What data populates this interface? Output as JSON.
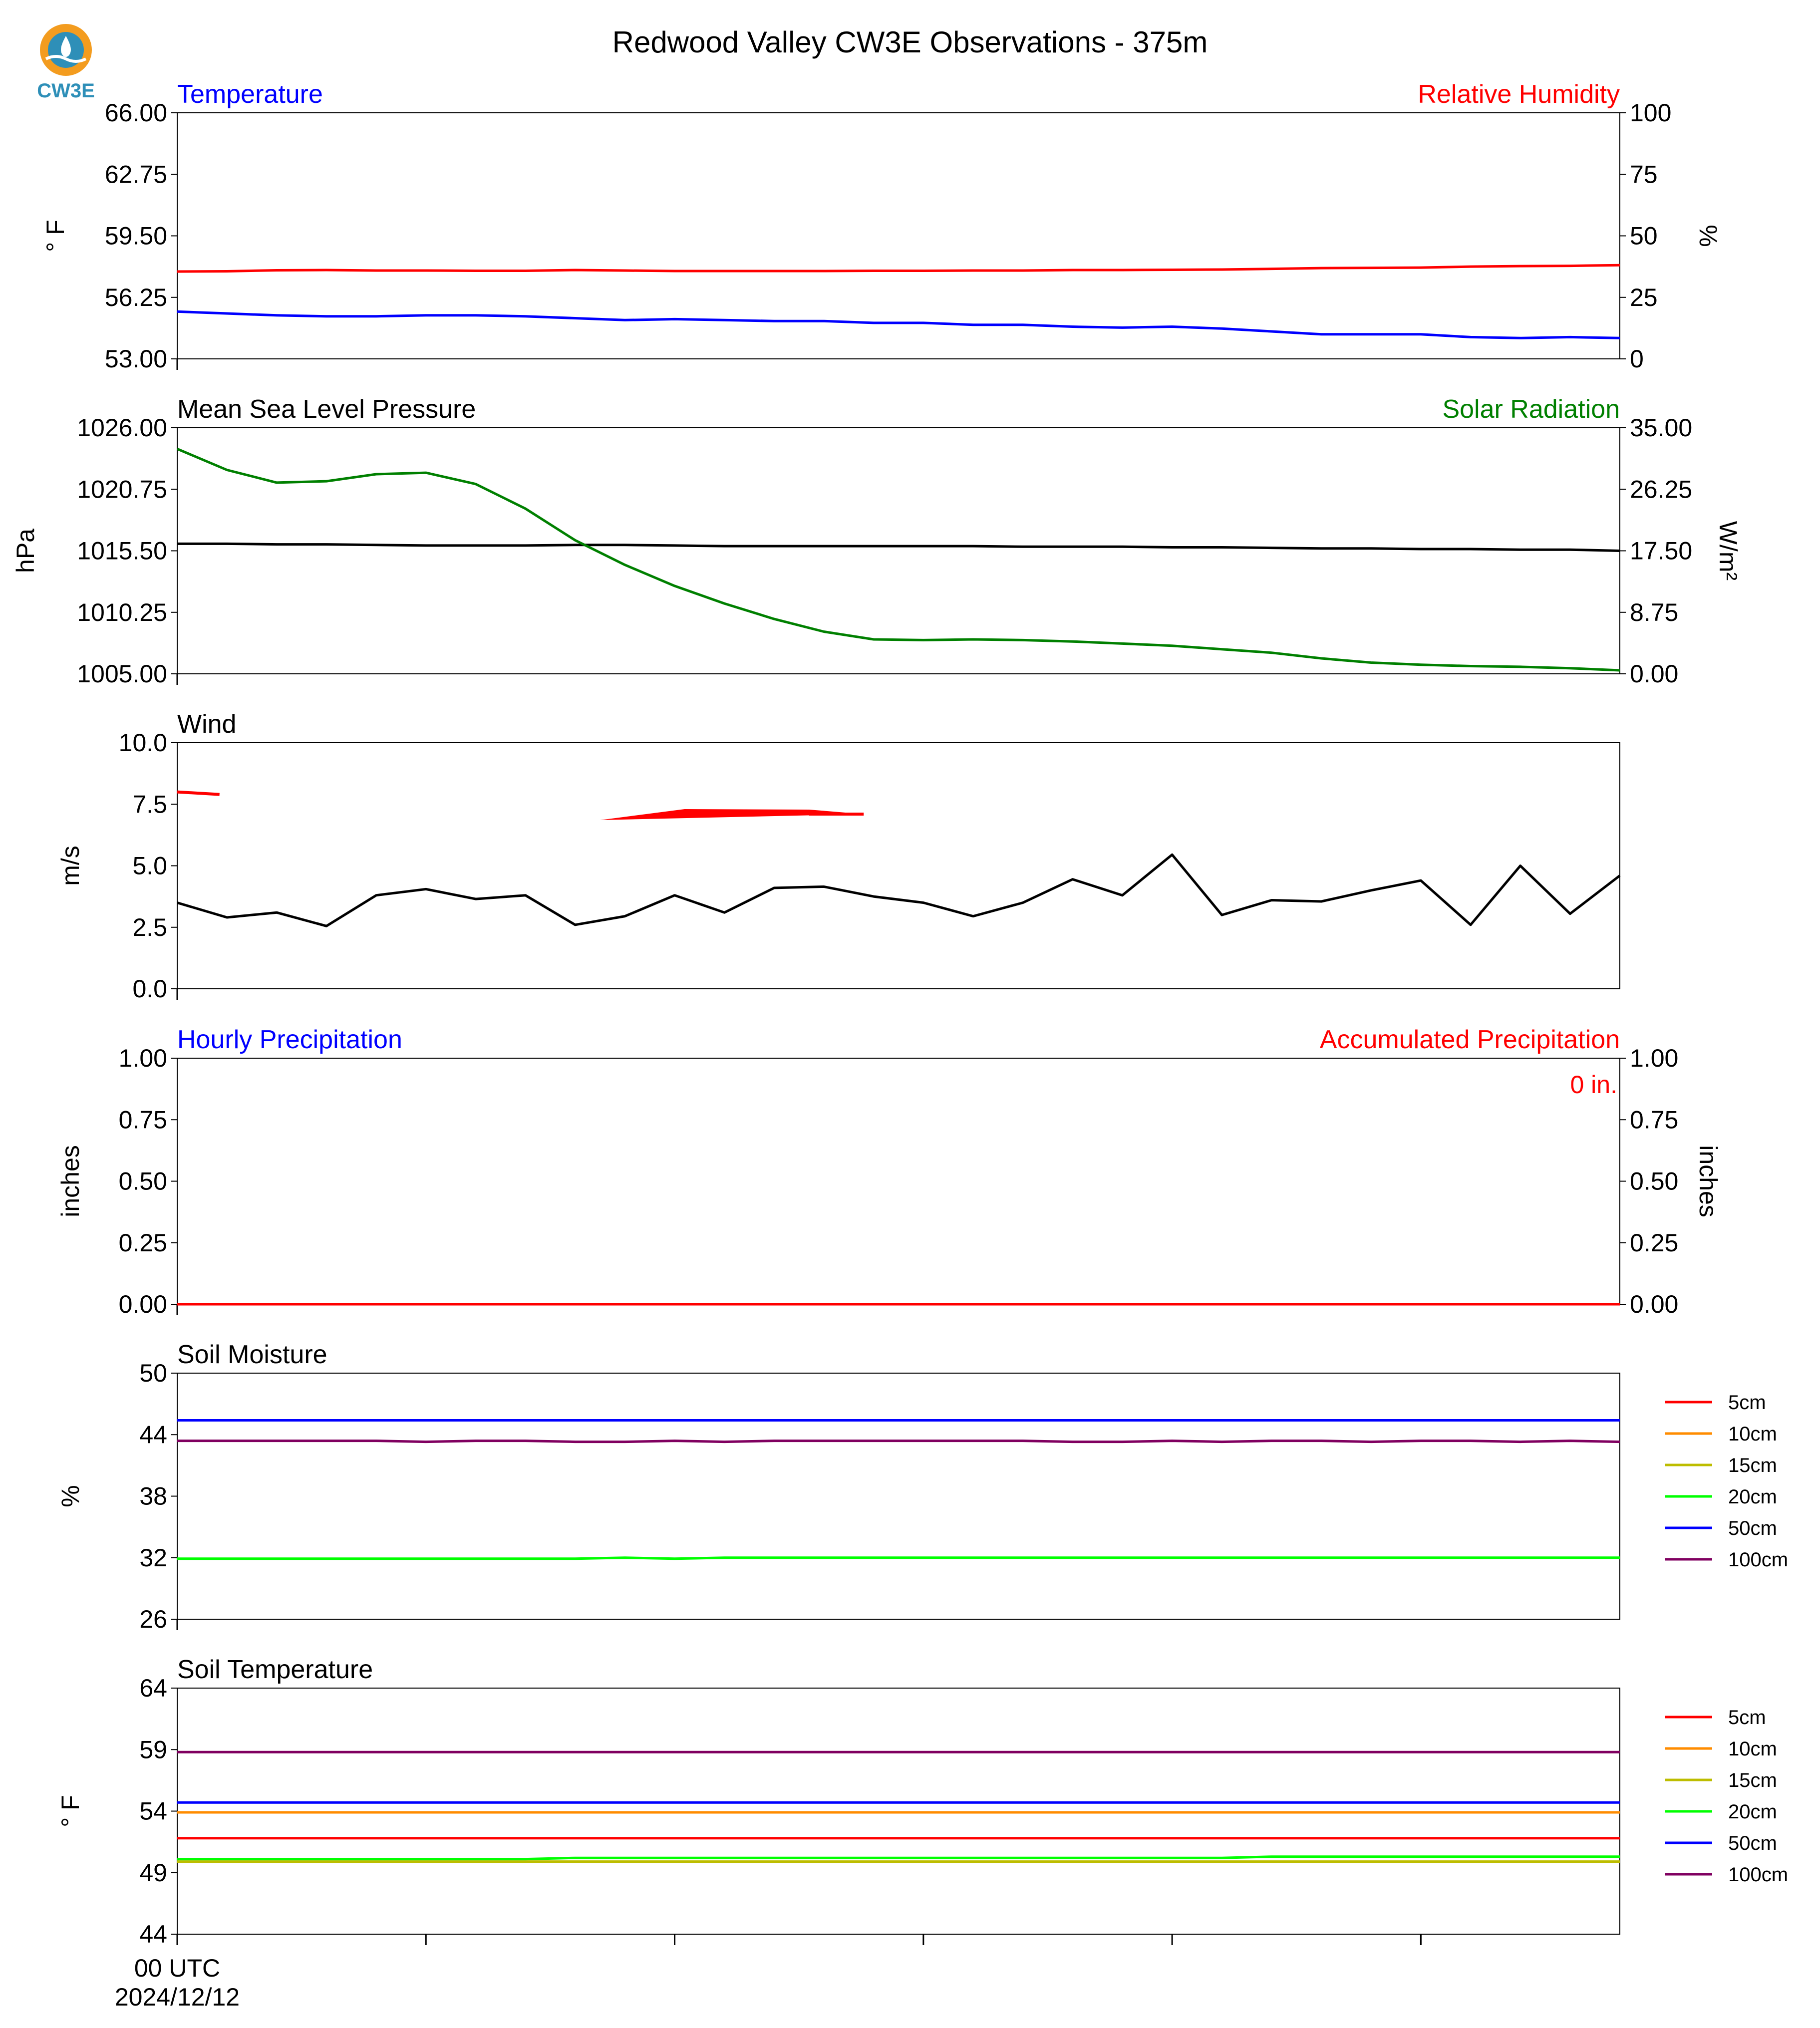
{
  "page": {
    "title": "Redwood Valley CW3E Observations - 375m",
    "logo_text": "CW3E",
    "x_start_label": "00 UTC",
    "x_date_label": "2024/12/12"
  },
  "colors": {
    "red": "#ff0000",
    "blue": "#0000ff",
    "green": "#008000",
    "black": "#000000",
    "lime": "#00ff00",
    "orange": "#ff8c00",
    "olive": "#bdbd00",
    "purple": "#800060",
    "logo_orange": "#f39c1f",
    "logo_blue": "#2e8fb8"
  },
  "chart_data": [
    {
      "type": "line",
      "left_title": "Temperature",
      "right_title": "Relative Humidity",
      "ylabel": "° F",
      "y2label": "%",
      "ylim": [
        53.0,
        66.0
      ],
      "yticks": [
        "53.00",
        "56.25",
        "59.50",
        "62.75",
        "66.00"
      ],
      "y2lim": [
        0,
        100
      ],
      "y2ticks": [
        "0",
        "25",
        "50",
        "75",
        "100"
      ],
      "x": [
        0,
        1,
        2,
        3,
        4,
        5,
        6,
        7,
        8,
        9,
        10,
        11,
        12,
        13,
        14,
        15,
        16,
        17,
        18,
        19,
        20,
        21,
        22,
        23,
        24,
        25,
        26,
        27,
        28,
        29
      ],
      "series": [
        {
          "name": "Temperature",
          "axis": "left",
          "color": "#0000ff",
          "values": [
            55.5,
            55.4,
            55.3,
            55.25,
            55.25,
            55.3,
            55.3,
            55.25,
            55.15,
            55.05,
            55.1,
            55.05,
            55.0,
            55.0,
            54.9,
            54.9,
            54.8,
            54.8,
            54.7,
            54.65,
            54.7,
            54.6,
            54.45,
            54.3,
            54.3,
            54.3,
            54.15,
            54.1,
            54.15,
            54.1
          ]
        },
        {
          "name": "Relative Humidity",
          "axis": "right",
          "color": "#ff0000",
          "values": [
            35.5,
            35.6,
            36.0,
            36.1,
            35.9,
            35.9,
            35.8,
            35.8,
            36.1,
            35.9,
            35.7,
            35.7,
            35.7,
            35.7,
            35.8,
            35.8,
            35.9,
            35.9,
            36.1,
            36.1,
            36.2,
            36.3,
            36.6,
            36.9,
            37.0,
            37.1,
            37.5,
            37.7,
            37.8,
            38.1
          ]
        }
      ]
    },
    {
      "type": "line",
      "left_title": "Mean Sea Level Pressure",
      "right_title": "Solar Radiation",
      "ylabel": "hPa",
      "y2label": "W/m²",
      "ylim": [
        1005.0,
        1026.0
      ],
      "yticks": [
        "1005.00",
        "1010.25",
        "1015.50",
        "1020.75",
        "1026.00"
      ],
      "y2lim": [
        0.0,
        35.0
      ],
      "y2ticks": [
        "0.00",
        "8.75",
        "17.50",
        "26.25",
        "35.00"
      ],
      "x": [
        0,
        1,
        2,
        3,
        4,
        5,
        6,
        7,
        8,
        9,
        10,
        11,
        12,
        13,
        14,
        15,
        16,
        17,
        18,
        19,
        20,
        21,
        22,
        23,
        24,
        25,
        26,
        27,
        28,
        29
      ],
      "series": [
        {
          "name": "Mean Sea Level Pressure",
          "axis": "left",
          "color": "#000000",
          "values": [
            1016.1,
            1016.1,
            1016.05,
            1016.05,
            1016.0,
            1015.95,
            1015.95,
            1015.95,
            1016.0,
            1016.0,
            1015.95,
            1015.9,
            1015.9,
            1015.9,
            1015.9,
            1015.9,
            1015.9,
            1015.85,
            1015.85,
            1015.85,
            1015.8,
            1015.8,
            1015.75,
            1015.7,
            1015.7,
            1015.65,
            1015.65,
            1015.6,
            1015.6,
            1015.5
          ]
        },
        {
          "name": "Solar Radiation",
          "axis": "right",
          "color": "#008000",
          "values": [
            32.0,
            29.0,
            27.2,
            27.4,
            28.4,
            28.6,
            27.0,
            23.5,
            19.0,
            15.5,
            12.5,
            10.0,
            7.8,
            6.0,
            4.9,
            4.8,
            4.9,
            4.8,
            4.6,
            4.3,
            4.0,
            3.5,
            3.0,
            2.2,
            1.6,
            1.3,
            1.1,
            1.0,
            0.8,
            0.5
          ]
        }
      ]
    },
    {
      "type": "line",
      "left_title": "Wind",
      "ylabel": "m/s",
      "ylim": [
        0.0,
        10.0
      ],
      "yticks": [
        "0.0",
        "2.5",
        "5.0",
        "7.5",
        "10.0"
      ],
      "x": [
        0,
        1,
        2,
        3,
        4,
        5,
        6,
        7,
        8,
        9,
        10,
        11,
        12,
        13,
        14,
        15,
        16,
        17,
        18,
        19,
        20,
        21,
        22,
        23,
        24,
        25,
        26,
        27,
        28,
        29
      ],
      "series": [
        {
          "name": "Wind Speed",
          "axis": "left",
          "color": "#000000",
          "values": [
            3.5,
            2.9,
            3.1,
            2.55,
            3.8,
            4.05,
            3.65,
            3.8,
            2.6,
            2.95,
            3.8,
            3.1,
            4.1,
            4.15,
            3.75,
            3.5,
            2.95,
            3.5,
            4.45,
            3.8,
            5.45,
            3.0,
            3.6,
            3.55,
            4.0,
            4.4,
            2.6,
            5.0,
            3.05,
            4.6
          ]
        }
      ],
      "barbs": {
        "color": "#ff0000",
        "y": [
          8.0,
          7.1
        ]
      }
    },
    {
      "type": "line",
      "left_title": "Hourly Precipitation",
      "right_title": "Accumulated Precipitation",
      "ylabel": "inches",
      "y2label": "inches",
      "ylim": [
        0.0,
        1.0
      ],
      "yticks": [
        "0.00",
        "0.25",
        "0.50",
        "0.75",
        "1.00"
      ],
      "y2lim": [
        0.0,
        1.0
      ],
      "y2ticks": [
        "0.00",
        "0.25",
        "0.50",
        "0.75",
        "1.00"
      ],
      "annotation": "0 in.",
      "x": [
        0,
        29
      ],
      "series": [
        {
          "name": "Hourly Precipitation",
          "axis": "left",
          "color": "#0000ff",
          "values": [
            0,
            0
          ]
        },
        {
          "name": "Accumulated Precipitation",
          "axis": "right",
          "color": "#ff0000",
          "values": [
            0,
            0
          ]
        }
      ]
    },
    {
      "type": "line",
      "left_title": "Soil Moisture",
      "ylabel": "%",
      "ylim": [
        26,
        50
      ],
      "yticks": [
        "26",
        "32",
        "38",
        "44",
        "50"
      ],
      "legend": [
        "5cm",
        "10cm",
        "15cm",
        "20cm",
        "50cm",
        "100cm"
      ],
      "legend_colors": [
        "#ff0000",
        "#ff8c00",
        "#bdbd00",
        "#00ff00",
        "#0000ff",
        "#800060"
      ],
      "x": [
        0,
        1,
        2,
        3,
        4,
        5,
        6,
        7,
        8,
        9,
        10,
        11,
        12,
        13,
        14,
        15,
        16,
        17,
        18,
        19,
        20,
        21,
        22,
        23,
        24,
        25,
        26,
        27,
        28,
        29
      ],
      "series": [
        {
          "name": "20cm",
          "axis": "left",
          "color": "#00ff00",
          "values": [
            31.9,
            31.9,
            31.9,
            31.9,
            31.9,
            31.9,
            31.9,
            31.9,
            31.9,
            32.0,
            31.9,
            32.0,
            32.0,
            32.0,
            32.0,
            32.0,
            32.0,
            32.0,
            32.0,
            32.0,
            32.0,
            32.0,
            32.0,
            32.0,
            32.0,
            32.0,
            32.0,
            32.0,
            32.0,
            32.0
          ]
        },
        {
          "name": "50cm",
          "axis": "left",
          "color": "#0000ff",
          "values": [
            45.4,
            45.4,
            45.4,
            45.4,
            45.4,
            45.4,
            45.4,
            45.4,
            45.4,
            45.4,
            45.4,
            45.4,
            45.4,
            45.4,
            45.4,
            45.4,
            45.4,
            45.4,
            45.4,
            45.4,
            45.4,
            45.4,
            45.4,
            45.4,
            45.4,
            45.4,
            45.4,
            45.4,
            45.4,
            45.4
          ]
        },
        {
          "name": "100cm",
          "axis": "left",
          "color": "#800060",
          "values": [
            43.4,
            43.4,
            43.4,
            43.4,
            43.4,
            43.3,
            43.4,
            43.4,
            43.3,
            43.3,
            43.4,
            43.3,
            43.4,
            43.4,
            43.4,
            43.4,
            43.4,
            43.4,
            43.3,
            43.3,
            43.4,
            43.3,
            43.4,
            43.4,
            43.3,
            43.4,
            43.4,
            43.3,
            43.4,
            43.3
          ]
        }
      ]
    },
    {
      "type": "line",
      "left_title": "Soil Temperature",
      "ylabel": "° F",
      "ylim": [
        44,
        64
      ],
      "yticks": [
        "44",
        "49",
        "54",
        "59",
        "64"
      ],
      "legend": [
        "5cm",
        "10cm",
        "15cm",
        "20cm",
        "50cm",
        "100cm"
      ],
      "legend_colors": [
        "#ff0000",
        "#ff8c00",
        "#bdbd00",
        "#00ff00",
        "#0000ff",
        "#800060"
      ],
      "x": [
        0,
        1,
        2,
        3,
        4,
        5,
        6,
        7,
        8,
        9,
        10,
        11,
        12,
        13,
        14,
        15,
        16,
        17,
        18,
        19,
        20,
        21,
        22,
        23,
        24,
        25,
        26,
        27,
        28,
        29
      ],
      "series": [
        {
          "name": "5cm",
          "axis": "left",
          "color": "#ff0000",
          "values": [
            51.8,
            51.8,
            51.8,
            51.8,
            51.8,
            51.8,
            51.8,
            51.8,
            51.8,
            51.8,
            51.8,
            51.8,
            51.8,
            51.8,
            51.8,
            51.8,
            51.8,
            51.8,
            51.8,
            51.8,
            51.8,
            51.8,
            51.8,
            51.8,
            51.8,
            51.8,
            51.8,
            51.8,
            51.8,
            51.8
          ]
        },
        {
          "name": "10cm",
          "axis": "left",
          "color": "#ff8c00",
          "values": [
            53.9,
            53.9,
            53.9,
            53.9,
            53.9,
            53.9,
            53.9,
            53.9,
            53.9,
            53.9,
            53.9,
            53.9,
            53.9,
            53.9,
            53.9,
            53.9,
            53.9,
            53.9,
            53.9,
            53.9,
            53.9,
            53.9,
            53.9,
            53.9,
            53.9,
            53.9,
            53.9,
            53.9,
            53.9,
            53.9
          ]
        },
        {
          "name": "15cm",
          "axis": "left",
          "color": "#bdbd00",
          "values": [
            49.9,
            49.9,
            49.9,
            49.9,
            49.9,
            49.9,
            49.9,
            49.9,
            49.9,
            49.9,
            49.9,
            49.9,
            49.9,
            49.9,
            49.9,
            49.9,
            49.9,
            49.9,
            49.9,
            49.9,
            49.9,
            49.9,
            49.9,
            49.9,
            49.9,
            49.9,
            49.9,
            49.9,
            49.9,
            49.9
          ]
        },
        {
          "name": "20cm",
          "axis": "left",
          "color": "#00ff00",
          "values": [
            50.1,
            50.1,
            50.1,
            50.1,
            50.1,
            50.1,
            50.1,
            50.1,
            50.2,
            50.2,
            50.2,
            50.2,
            50.2,
            50.2,
            50.2,
            50.2,
            50.2,
            50.2,
            50.2,
            50.2,
            50.2,
            50.2,
            50.3,
            50.3,
            50.3,
            50.3,
            50.3,
            50.3,
            50.3,
            50.3
          ]
        },
        {
          "name": "50cm",
          "axis": "left",
          "color": "#0000ff",
          "values": [
            54.7,
            54.7,
            54.7,
            54.7,
            54.7,
            54.7,
            54.7,
            54.7,
            54.7,
            54.7,
            54.7,
            54.7,
            54.7,
            54.7,
            54.7,
            54.7,
            54.7,
            54.7,
            54.7,
            54.7,
            54.7,
            54.7,
            54.7,
            54.7,
            54.7,
            54.7,
            54.7,
            54.7,
            54.7,
            54.7
          ]
        },
        {
          "name": "100cm",
          "axis": "left",
          "color": "#800060",
          "values": [
            58.8,
            58.8,
            58.8,
            58.8,
            58.8,
            58.8,
            58.8,
            58.8,
            58.8,
            58.8,
            58.8,
            58.8,
            58.8,
            58.8,
            58.8,
            58.8,
            58.8,
            58.8,
            58.8,
            58.8,
            58.8,
            58.8,
            58.8,
            58.8,
            58.8,
            58.8,
            58.8,
            58.8,
            58.8,
            58.8
          ]
        }
      ]
    }
  ]
}
